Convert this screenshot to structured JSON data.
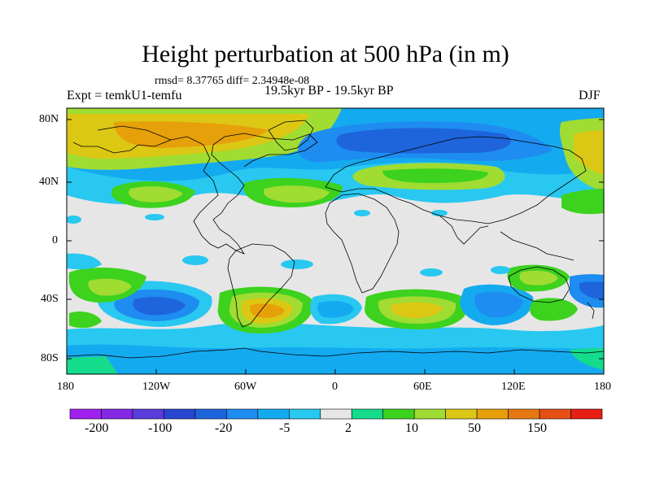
{
  "figure": {
    "title": "Height perturbation at 500 hPa (in m)",
    "rmsd_label": "rmsd= 8.37765 diff= 2.34948e-08",
    "experiment": "Expt = temkU1-temfu",
    "period": "19.5kyr BP - 19.5kyr BP",
    "season": "DJF"
  },
  "axes": {
    "lat_ticks": [
      "80N",
      "40N",
      "0",
      "40S",
      "80S"
    ],
    "lon_ticks": [
      "180",
      "120W",
      "60W",
      "0",
      "60E",
      "120E",
      "180"
    ]
  },
  "colorbar": {
    "colors": [
      "#a020f0",
      "#8428e6",
      "#5a3cdc",
      "#2846d2",
      "#1e64dc",
      "#1e8cf0",
      "#14aaf0",
      "#28c8f0",
      "#e6e6e6",
      "#14dc8c",
      "#3cd21e",
      "#a0dc32",
      "#dcc814",
      "#e6a00a",
      "#e67814",
      "#e65014",
      "#e61e14"
    ],
    "labels": [
      "-200",
      "-100",
      "-20",
      "-5",
      "2",
      "10",
      "50",
      "150"
    ]
  },
  "legend_colors": {
    "neutral": "#e6e6e6",
    "coast": "#000000"
  }
}
